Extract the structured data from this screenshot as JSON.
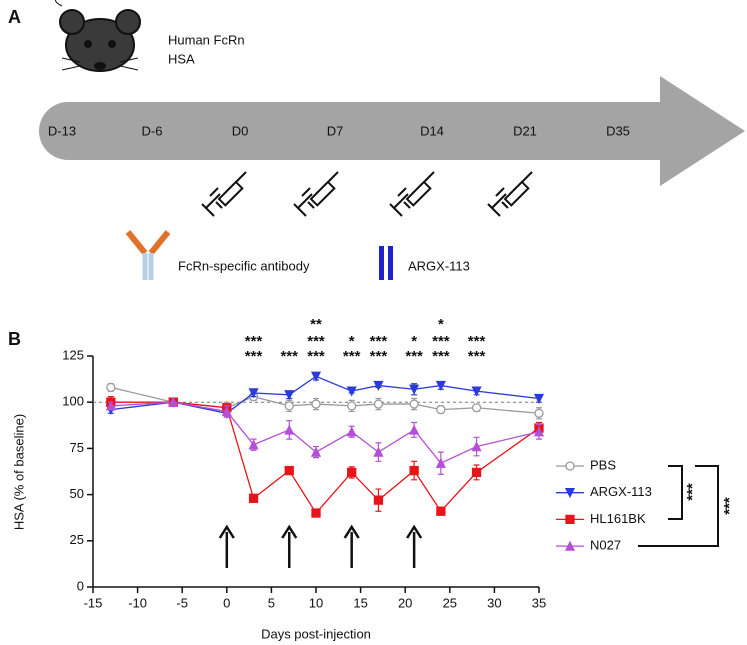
{
  "diagram": {
    "panel_label": "A",
    "mouse_labels": [
      "Human FcRn",
      "HSA"
    ],
    "timeline": [
      "D-13",
      "D-6",
      "D0",
      "D7",
      "D14",
      "D21",
      "D35"
    ],
    "legend": [
      "FcRn-specific antibody",
      "ARGX-113"
    ]
  },
  "chart_data": {
    "type": "line",
    "panel_label": "B",
    "x_label": "Days post-injection",
    "y_label": "HSA (% of baseline)",
    "xlim": [
      -15,
      35
    ],
    "xticks": [
      -15,
      -10,
      -5,
      0,
      5,
      10,
      15,
      20,
      25,
      30,
      35
    ],
    "ylim": [
      0,
      125
    ],
    "yticks": [
      0,
      25,
      50,
      75,
      100,
      125
    ],
    "reference_line": 100,
    "x": [
      -13,
      -6,
      0,
      3,
      7,
      10,
      14,
      17,
      21,
      24,
      28,
      35
    ],
    "series": [
      {
        "name": "PBS",
        "color": "#9a9a9a",
        "marker": "circle-open",
        "values": [
          108,
          100,
          97,
          103,
          98,
          99,
          98,
          99,
          99,
          96,
          97,
          94
        ],
        "errors": [
          2,
          0,
          3,
          2,
          3,
          3,
          3,
          3,
          3,
          2,
          2,
          3
        ]
      },
      {
        "name": "ARGX-113",
        "color": "#2b3bd9",
        "marker": "triangle-down",
        "values": [
          96,
          100,
          94,
          105,
          104,
          114,
          106,
          109,
          107,
          109,
          106,
          102
        ],
        "errors": [
          2,
          0,
          2,
          2,
          2,
          2,
          1,
          1,
          3,
          2,
          2,
          2
        ]
      },
      {
        "name": "HL161BK",
        "color": "#e8141a",
        "marker": "square",
        "values": [
          100,
          100,
          97,
          48,
          63,
          40,
          62,
          47,
          63,
          41,
          62,
          86
        ],
        "errors": [
          3,
          0,
          2,
          1,
          2,
          2,
          3,
          6,
          5,
          2,
          4,
          3
        ]
      },
      {
        "name": "N027",
        "color": "#b44fd6",
        "marker": "triangle-up",
        "values": [
          98,
          100,
          95,
          77,
          85,
          73,
          84,
          73,
          85,
          67,
          76,
          84
        ],
        "errors": [
          2,
          0,
          3,
          3,
          5,
          3,
          3,
          5,
          4,
          6,
          5,
          4
        ]
      }
    ],
    "significance": [
      {
        "color": "#1a1ab8",
        "x": [
          10,
          24
        ],
        "labels": [
          "**",
          "*"
        ]
      },
      {
        "color": "#c070e0",
        "x": [
          3,
          10,
          14,
          17,
          21,
          24,
          28
        ],
        "labels": [
          "***",
          "***",
          "*",
          "***",
          "*",
          "***",
          "***"
        ]
      },
      {
        "color": "#e01010",
        "x": [
          3,
          7,
          10,
          14,
          17,
          21,
          24,
          28
        ],
        "labels": [
          "***",
          "***",
          "***",
          "***",
          "***",
          "***",
          "***",
          "***"
        ]
      }
    ],
    "arrows_x": [
      0,
      7,
      14,
      21
    ],
    "comparison_labels": [
      "***",
      "***"
    ]
  }
}
